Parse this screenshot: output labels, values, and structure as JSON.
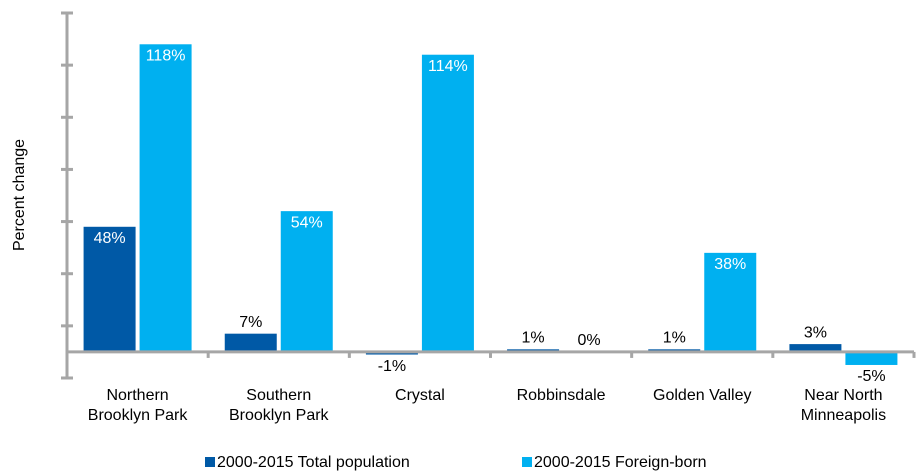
{
  "chart_data": {
    "type": "bar",
    "y_label": "Percent change",
    "categories": [
      "Northern\nBrooklyn Park",
      "Southern\nBrooklyn Park",
      "Crystal",
      "Robbinsdale",
      "Golden Valley",
      "Near North\nMinneapolis"
    ],
    "series": [
      {
        "name": "2000-2015 Total population",
        "color": "#0059a6",
        "values": [
          48,
          7,
          -1,
          1,
          1,
          3
        ],
        "value_labels": [
          "48%",
          "7%",
          "-1%",
          "1%",
          "1%",
          "3%"
        ]
      },
      {
        "name": "2000-2015 Foreign-born",
        "color": "#00b0f0",
        "values": [
          118,
          54,
          114,
          0,
          38,
          -5
        ],
        "value_labels": [
          "118%",
          "54%",
          "114%",
          "0%",
          "38%",
          "-5%"
        ]
      }
    ],
    "ylim": [
      -10,
      130
    ],
    "yticks": [
      -10,
      10,
      30,
      50,
      70,
      90,
      110,
      130
    ]
  }
}
